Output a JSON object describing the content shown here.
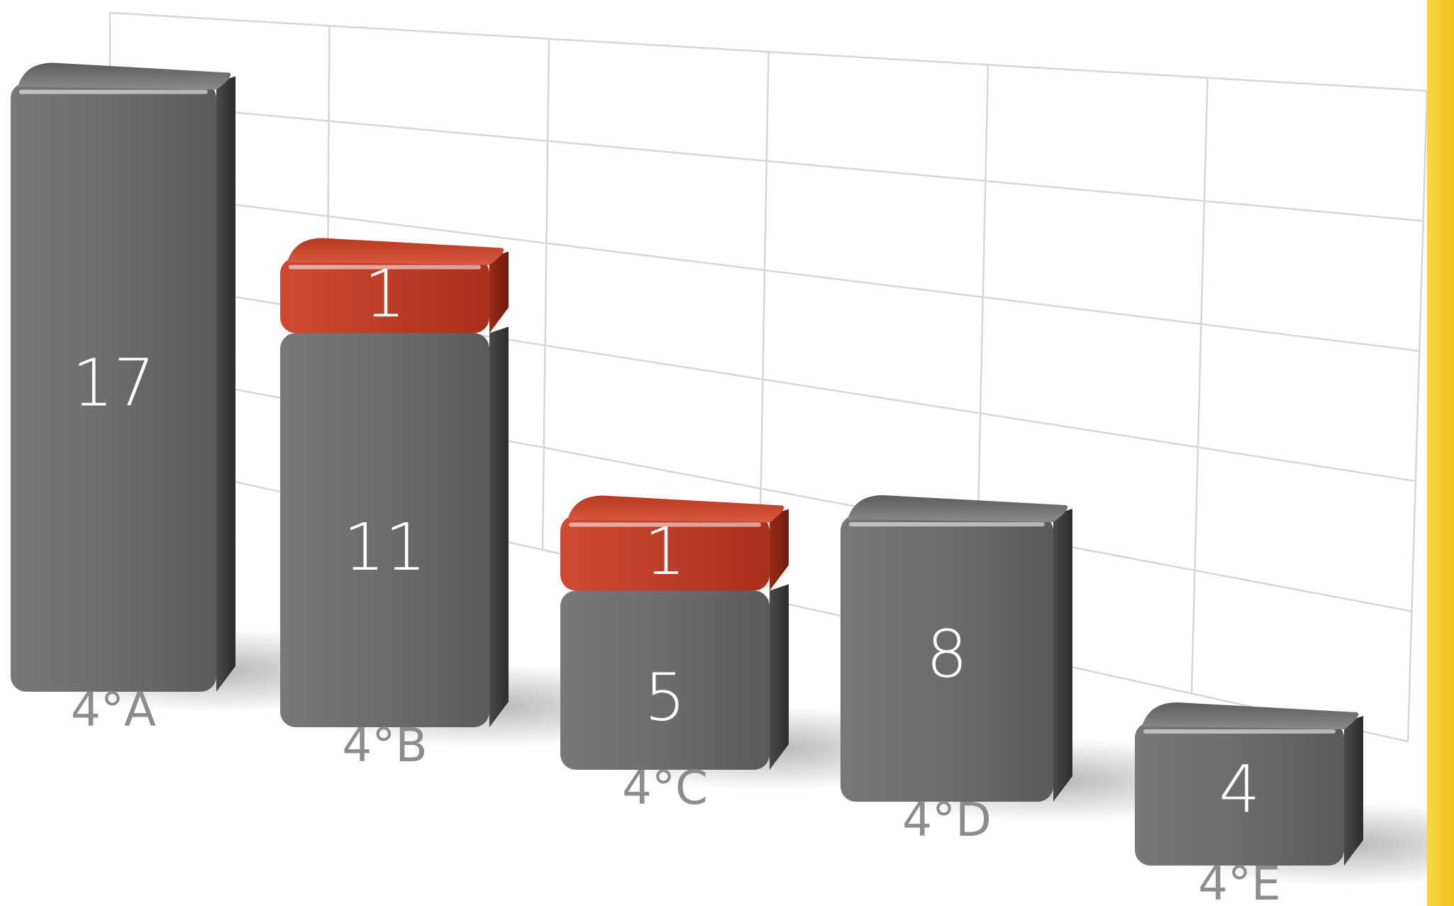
{
  "colors": {
    "bar_base": "#6a6a6a",
    "bar_side": "#3d3d3d",
    "bar_top": "#808080",
    "segment_accent": "#c23a24",
    "segment_accent_top": "#d14a33",
    "gridline": "#d6d6d6",
    "tick_label": "#8c8c8c",
    "value_label": "#ffffff",
    "side_band": "#f2c823"
  },
  "chart_data": {
    "type": "bar",
    "stacked": true,
    "style": "3d",
    "grid": true,
    "legend": "none",
    "title": "",
    "xlabel": "",
    "ylabel": "",
    "ylim": [
      0,
      18
    ],
    "categories": [
      "4°A",
      "4°B",
      "4°C",
      "4°D",
      "4°E"
    ],
    "series": [
      {
        "values": [
          17,
          11,
          5,
          8,
          4
        ],
        "color": "#6a6a6a"
      },
      {
        "values": [
          0,
          1,
          1,
          0,
          0
        ],
        "color": "#c23a24"
      }
    ],
    "data_labels": [
      [
        "17",
        "11",
        "5",
        "8",
        "4"
      ],
      [
        "",
        "1",
        "1",
        "",
        ""
      ]
    ]
  }
}
